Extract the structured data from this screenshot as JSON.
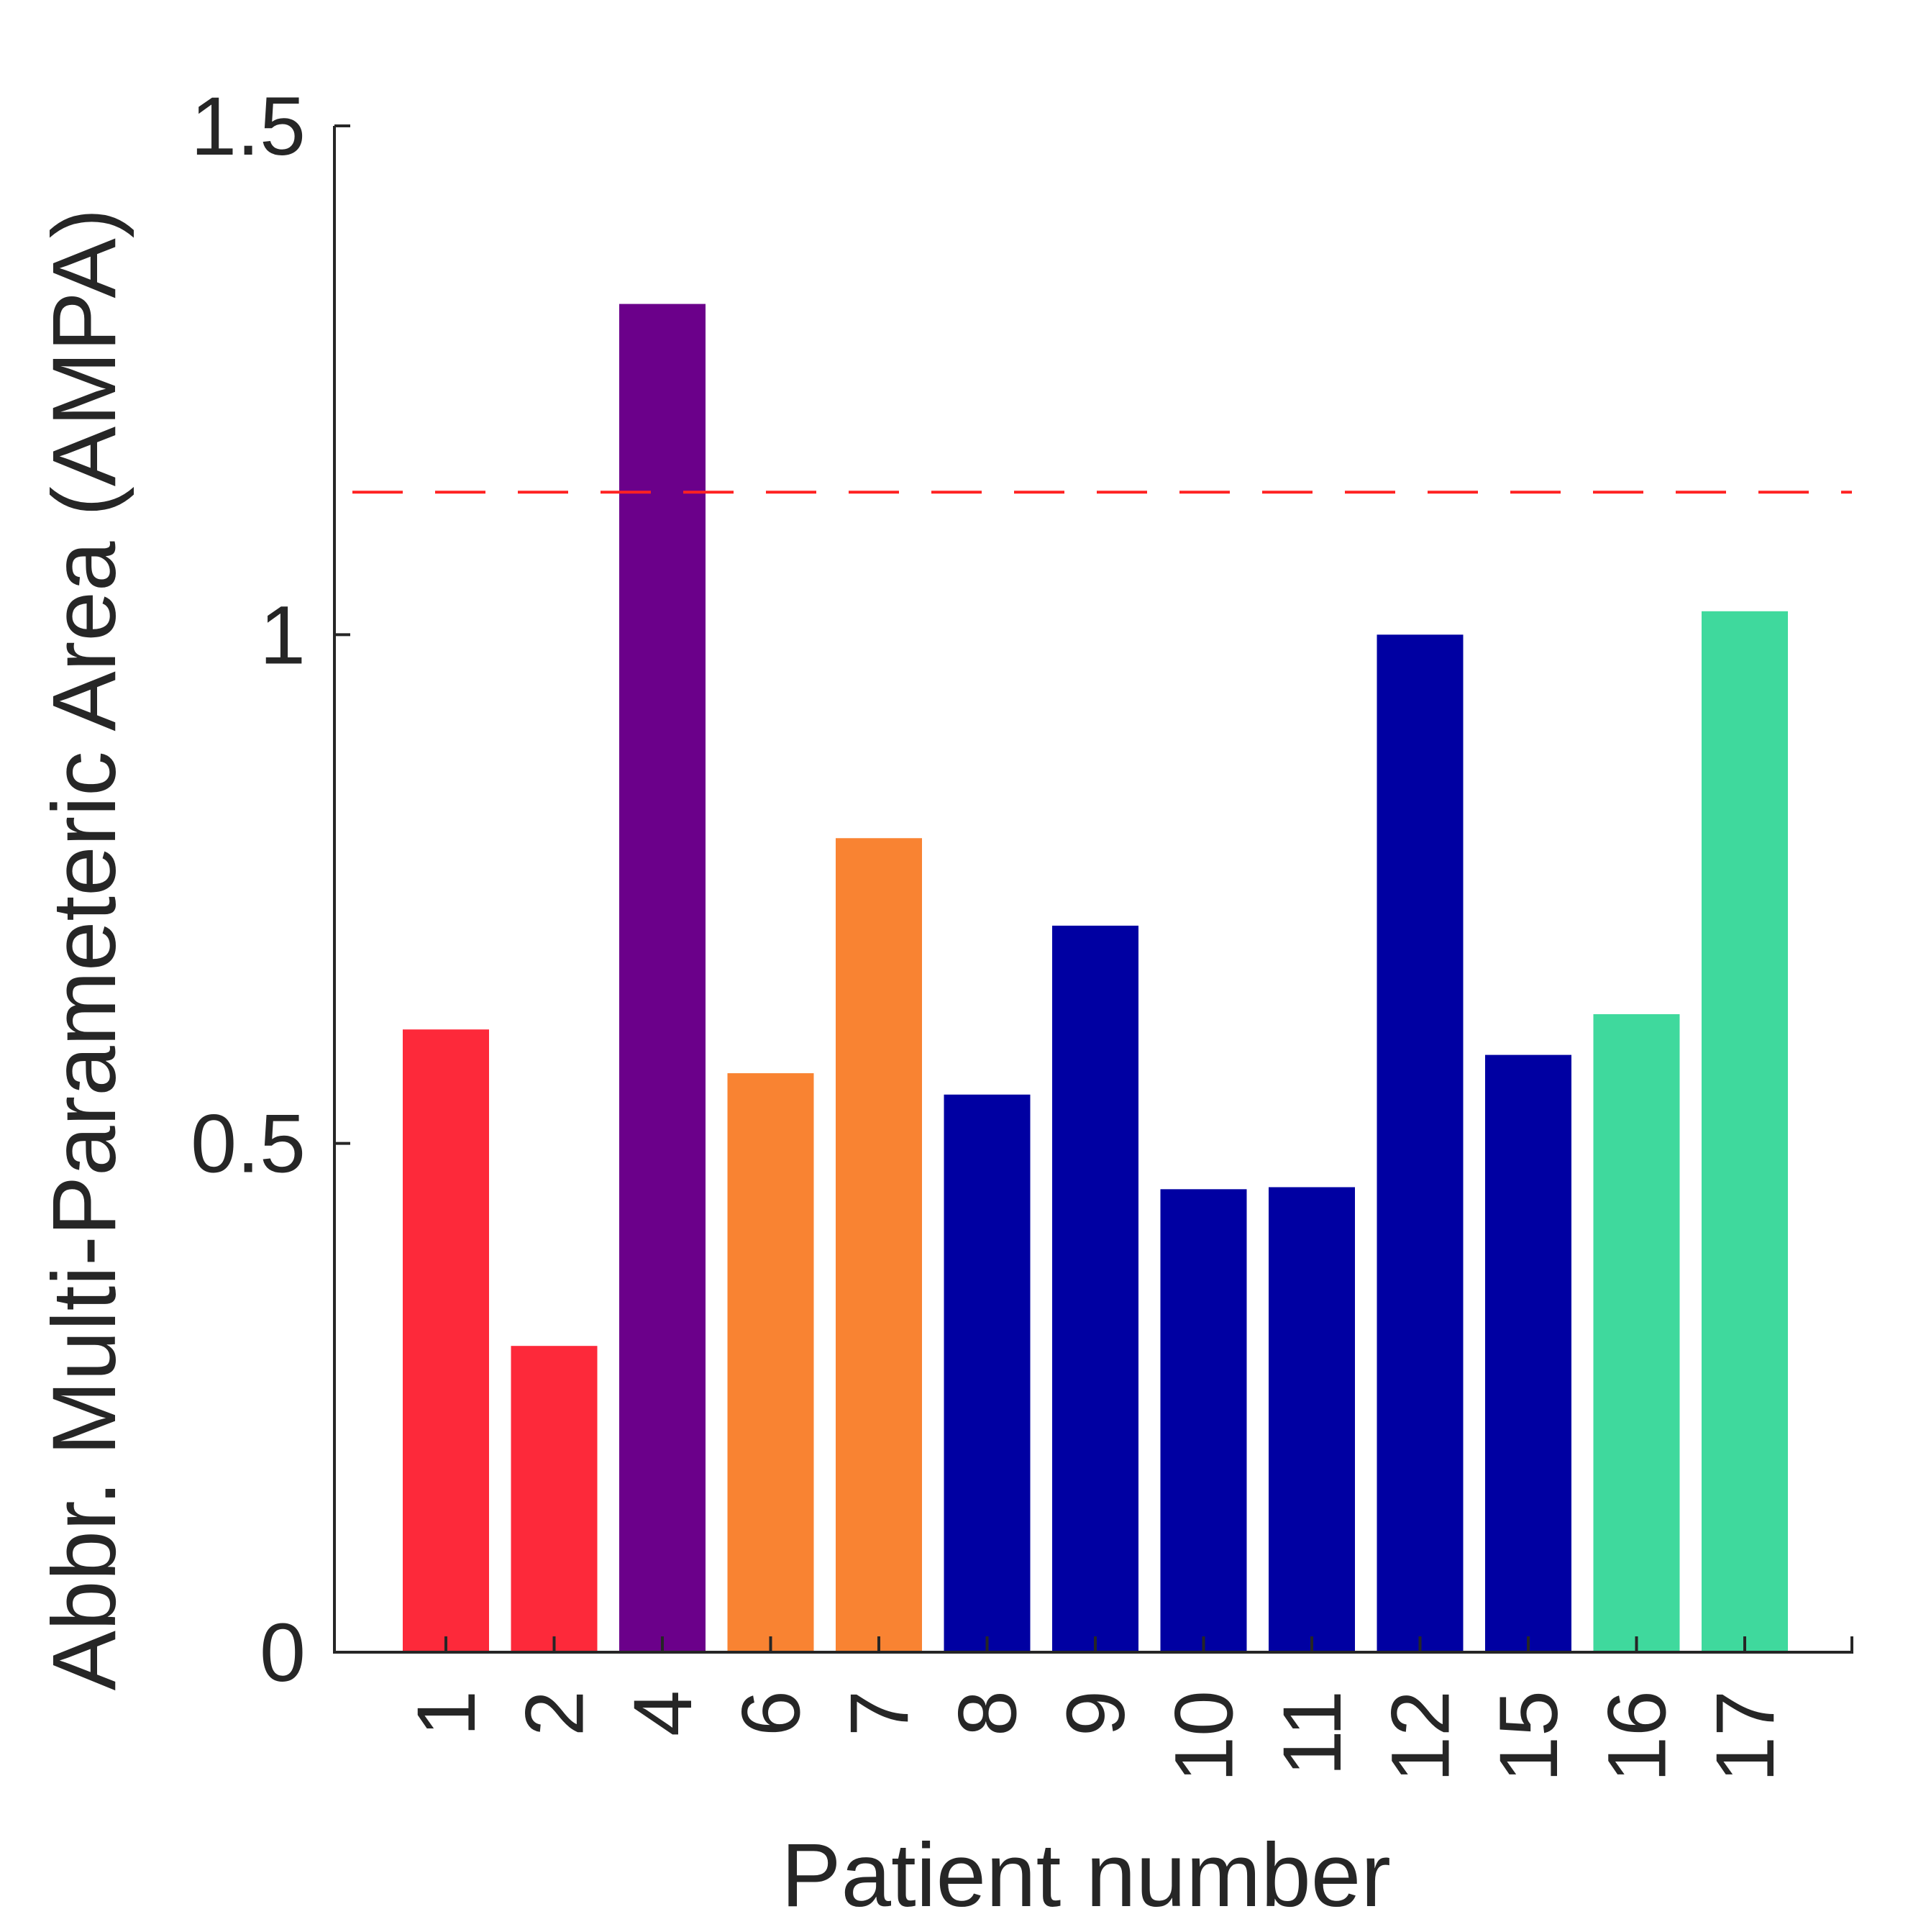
{
  "chart_data": {
    "type": "bar",
    "title": "",
    "xlabel": "Patient number",
    "ylabel": "Abbr. Multi-Parameteric Area (AMPA)",
    "ylim": [
      0,
      1.5
    ],
    "yticks": [
      0,
      0.5,
      1,
      1.5
    ],
    "ytick_labels": [
      "0",
      "0.5",
      "1",
      "1.5"
    ],
    "categories": [
      "1",
      "2",
      "4",
      "6",
      "7",
      "8",
      "9",
      "10",
      "11",
      "12",
      "15",
      "16",
      "17"
    ],
    "values": [
      0.612,
      0.301,
      1.325,
      0.569,
      0.8,
      0.548,
      0.714,
      0.455,
      0.457,
      1.0,
      0.587,
      0.627,
      1.023
    ],
    "bar_colors": [
      "#fd293a",
      "#fd293a",
      "#6b008a",
      "#f98332",
      "#f98332",
      "#0000a2",
      "#0000a2",
      "#0000a2",
      "#0000a2",
      "#0000a2",
      "#0000a2",
      "#3fd99d",
      "#3fd99d"
    ],
    "threshold": {
      "value": 1.14,
      "color": "#ff2222",
      "style": "dashed"
    },
    "grid": false,
    "legend": "none"
  }
}
